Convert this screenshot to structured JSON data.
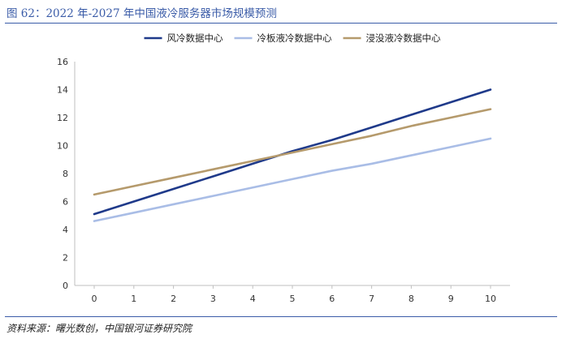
{
  "figure": {
    "title": "图 62：2022 年-2027 年中国液冷服务器市场规模预测",
    "source": "资料来源：曙光数创，中国银河证券研究院"
  },
  "chart_data": {
    "type": "line",
    "x": [
      0,
      1,
      2,
      3,
      4,
      5,
      6,
      7,
      8,
      9,
      10
    ],
    "xlim": [
      0,
      10
    ],
    "ylim": [
      0,
      16
    ],
    "yticks": [
      0,
      2,
      4,
      6,
      8,
      10,
      12,
      14,
      16
    ],
    "grid": false,
    "legend": "top-center",
    "series": [
      {
        "name": "风冷数据中心",
        "color": "#1f3a8a",
        "values": [
          5.1,
          6.0,
          6.9,
          7.8,
          8.7,
          9.6,
          10.4,
          11.3,
          12.2,
          13.1,
          14.0
        ]
      },
      {
        "name": "冷板液冷数据中心",
        "color": "#a9bde6",
        "values": [
          4.6,
          5.2,
          5.8,
          6.4,
          7.0,
          7.6,
          8.2,
          8.7,
          9.3,
          9.9,
          10.5
        ]
      },
      {
        "name": "浸没液冷数据中心",
        "color": "#b59a6c",
        "values": [
          6.5,
          7.1,
          7.7,
          8.3,
          8.9,
          9.5,
          10.1,
          10.7,
          11.4,
          12.0,
          12.6
        ]
      }
    ]
  }
}
